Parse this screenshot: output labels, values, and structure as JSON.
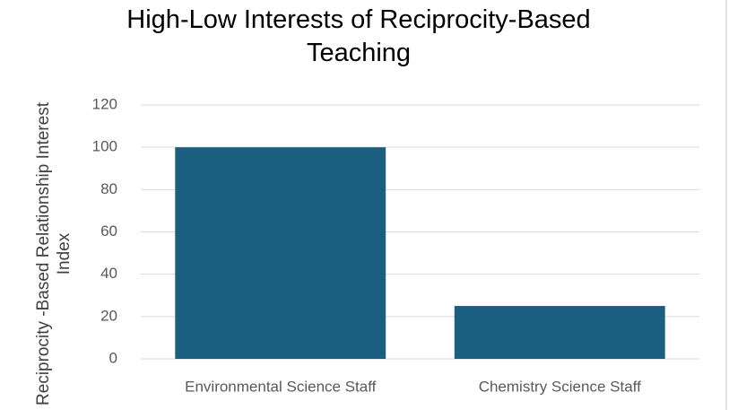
{
  "chart_data": {
    "type": "bar",
    "title": "High-Low Interests of Reciprocity-Based Teaching",
    "y_label": "Reciprocity -Based Relationship Interest Index",
    "categories": [
      "Environmental Science Staff",
      "Chemistry Science Staff"
    ],
    "values": [
      100,
      25
    ],
    "color": "#1b5e7f",
    "ylim": [
      0,
      120
    ],
    "yticks": [
      0,
      20,
      40,
      60,
      80,
      100,
      120
    ],
    "grid": true
  }
}
